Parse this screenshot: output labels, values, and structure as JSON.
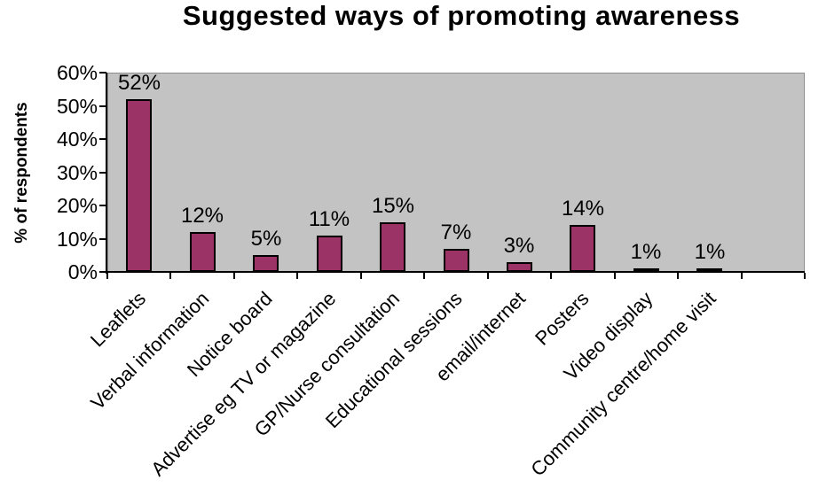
{
  "chart_data": {
    "type": "bar",
    "title": "Suggested ways of promoting awareness",
    "xlabel": "",
    "ylabel": "% of respondents",
    "categories": [
      "Leaflets",
      "Verbal information",
      "Notice board",
      "Advertise eg TV or magazine",
      "GP/Nurse consultation",
      "Educational sessions",
      "email/internet",
      "Posters",
      "Video display",
      "Community centre/home visit"
    ],
    "values": [
      52,
      12,
      5,
      11,
      15,
      7,
      3,
      14,
      1,
      1
    ],
    "data_labels": [
      "52%",
      "12%",
      "5%",
      "11%",
      "15%",
      "7%",
      "3%",
      "14%",
      "1%",
      "1%"
    ],
    "y_ticks": [
      "0%",
      "10%",
      "20%",
      "30%",
      "40%",
      "50%",
      "60%"
    ],
    "ylim": [
      0,
      60
    ],
    "grid": false,
    "legend": "none",
    "empty_trailing_slots": 1,
    "colors": {
      "bar_fill": "#9B3366",
      "bar_border": "#000000",
      "plot_background": "#C3C3C3",
      "plot_border": "#8C8C8C",
      "axis": "#000000",
      "text": "#000000",
      "page_background": "#FFFFFF"
    }
  }
}
